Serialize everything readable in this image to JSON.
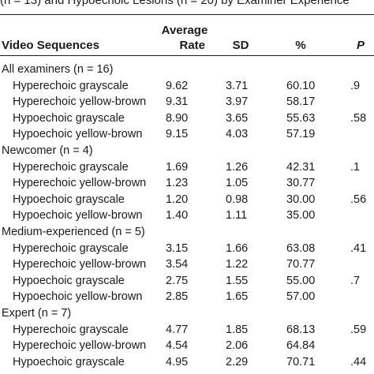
{
  "caption": "(n = 13) and Hypoechoic Lesions (n = 20) by Examiner Experience",
  "header": {
    "video": "Video Sequences",
    "average": "Average",
    "rate": "Rate",
    "sd": "SD",
    "pct": "%",
    "p": "P"
  },
  "groups": [
    {
      "label": "All examiners (n = 16)",
      "rows": [
        {
          "label": "Hyperechoic grayscale",
          "rate": "9.62",
          "sd": "3.71",
          "pct": "60.10",
          "p": ".9"
        },
        {
          "label": "Hyperechoic yellow-brown",
          "rate": "9.31",
          "sd": "3.97",
          "pct": "58.17",
          "p": ""
        },
        {
          "label": "Hypoechoic grayscale",
          "rate": "8.90",
          "sd": "3.65",
          "pct": "55.63",
          "p": ".58"
        },
        {
          "label": "Hypoechoic yellow-brown",
          "rate": "9.15",
          "sd": "4.03",
          "pct": "57.19",
          "p": ""
        }
      ]
    },
    {
      "label": "Newcomer (n = 4)",
      "rows": [
        {
          "label": "Hyperechoic grayscale",
          "rate": "1.69",
          "sd": "1.26",
          "pct": "42.31",
          "p": ".1"
        },
        {
          "label": "Hyperechoic yellow-brown",
          "rate": "1.23",
          "sd": "1.05",
          "pct": "30.77",
          "p": ""
        },
        {
          "label": "Hypoechoic grayscale",
          "rate": "1.20",
          "sd": "0.98",
          "pct": "30.00",
          "p": ".56"
        },
        {
          "label": "Hypoechoic yellow-brown",
          "rate": "1.40",
          "sd": "1.11",
          "pct": "35.00",
          "p": ""
        }
      ]
    },
    {
      "label": "Medium-experienced (n = 5)",
      "rows": [
        {
          "label": "Hyperechoic grayscale",
          "rate": "3.15",
          "sd": "1.66",
          "pct": "63.08",
          "p": ".41"
        },
        {
          "label": "Hyperechoic yellow-brown",
          "rate": "3.54",
          "sd": "1.22",
          "pct": "70.77",
          "p": ""
        },
        {
          "label": "Hypoechoic grayscale",
          "rate": "2.75",
          "sd": "1.55",
          "pct": "55.00",
          "p": ".7"
        },
        {
          "label": "Hypoechoic yellow-brown",
          "rate": "2.85",
          "sd": "1.65",
          "pct": "57.00",
          "p": ""
        }
      ]
    },
    {
      "label": "Expert (n = 7)",
      "rows": [
        {
          "label": "Hyperechoic grayscale",
          "rate": "4.77",
          "sd": "1.85",
          "pct": "68.13",
          "p": ".59"
        },
        {
          "label": "Hyperechoic yellow-brown",
          "rate": "4.54",
          "sd": "2.06",
          "pct": "64.84",
          "p": ""
        },
        {
          "label": "Hypoechoic grayscale",
          "rate": "4.95",
          "sd": "2.29",
          "pct": "70.71",
          "p": ".44"
        }
      ]
    }
  ]
}
